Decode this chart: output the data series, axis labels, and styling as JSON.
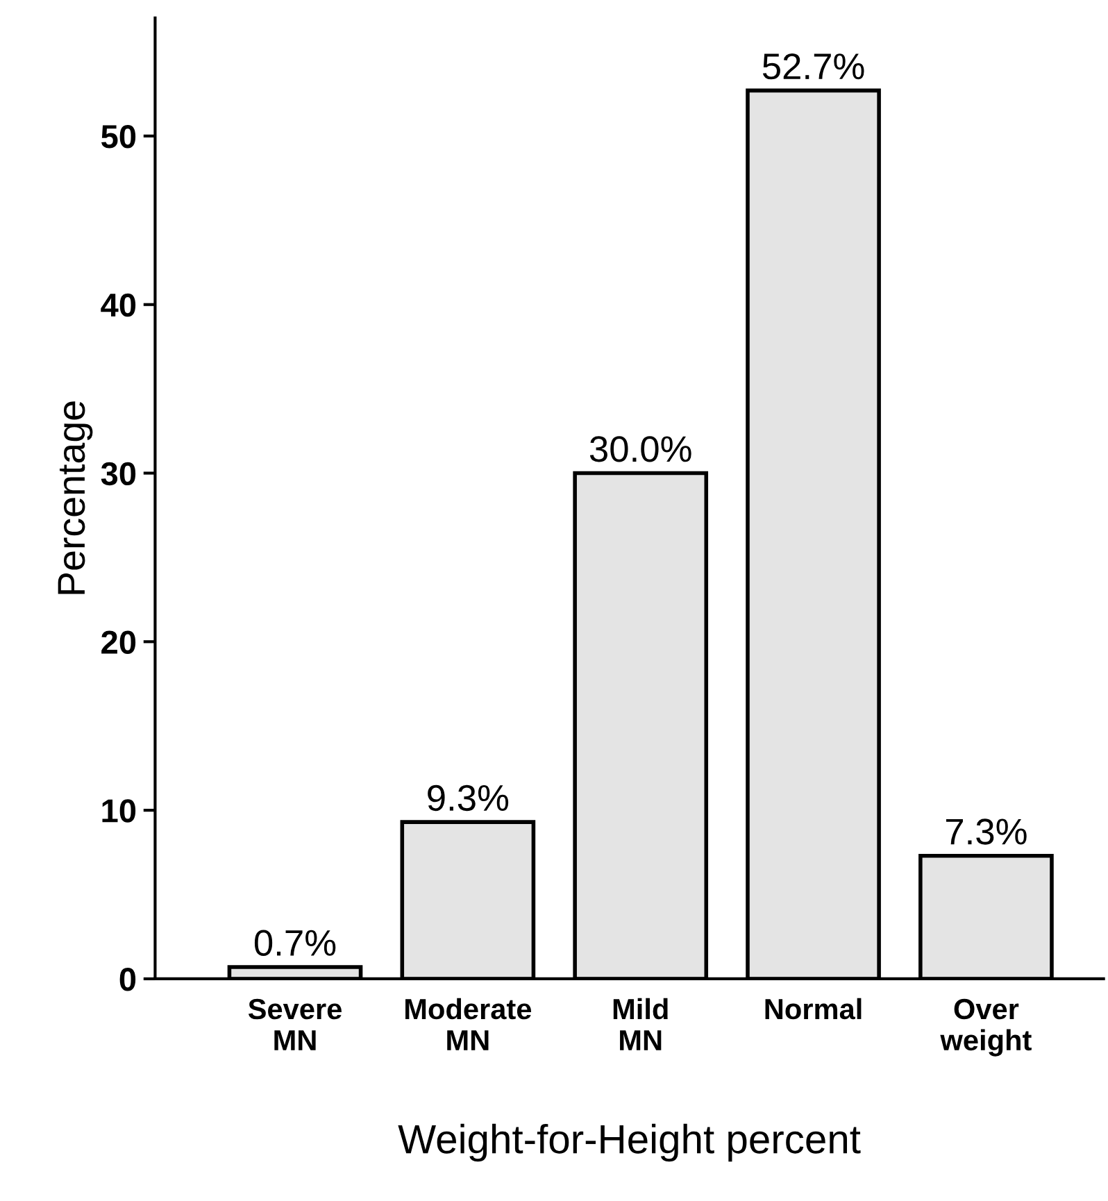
{
  "chart_data": {
    "type": "bar",
    "xlabel": "Weight-for-Height percent",
    "ylabel": "Percentage",
    "categories": [
      "Severe\nMN",
      "Moderate\nMN",
      "Mild\nMN",
      "Normal",
      "Over\nweight"
    ],
    "values": [
      0.7,
      9.3,
      30.0,
      52.7,
      7.3
    ],
    "value_labels": [
      "0.7%",
      "9.3%",
      "30.0%",
      "52.7%",
      "7.3%"
    ],
    "color": "#e4e4e4",
    "ylim": [
      0,
      57
    ],
    "yticks": [
      0,
      10,
      20,
      30,
      40,
      50
    ],
    "grid": false,
    "legend": false
  }
}
